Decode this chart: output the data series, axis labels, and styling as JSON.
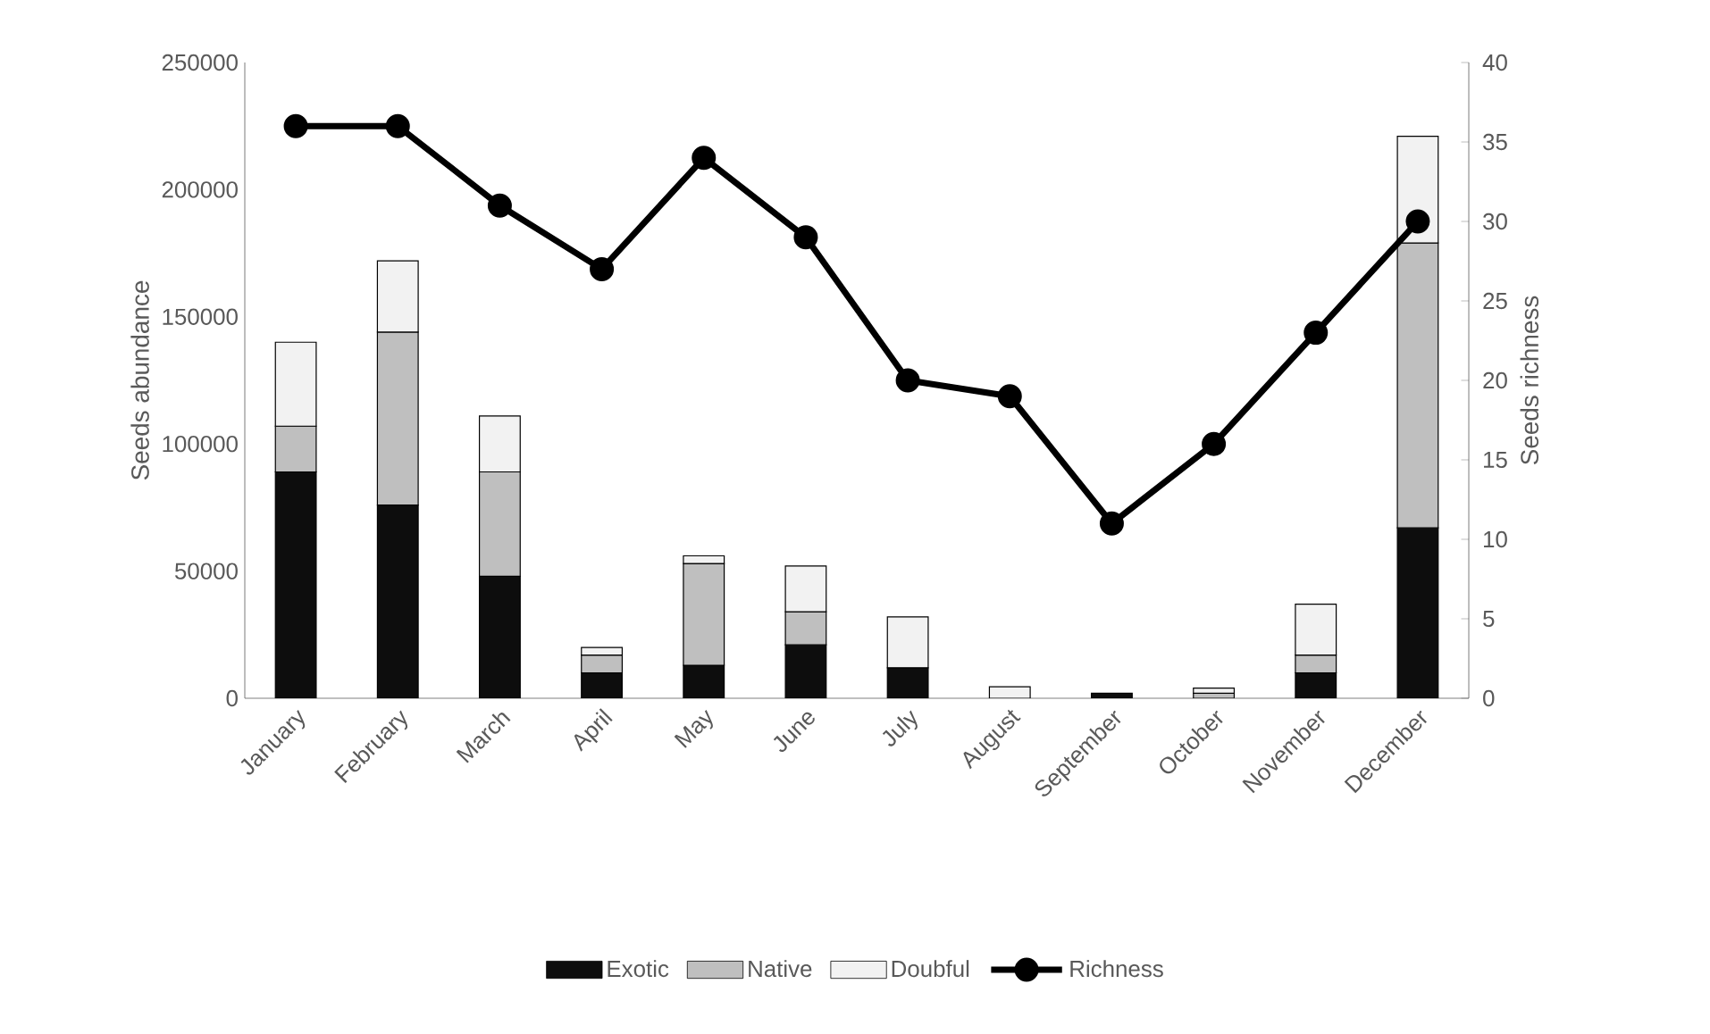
{
  "chart_data": {
    "type": "bar",
    "stacked": true,
    "ylabel": "Seeds abundance",
    "y2label": "Seeds richness",
    "categories": [
      "January",
      "February",
      "March",
      "April",
      "May",
      "June",
      "July",
      "August",
      "September",
      "October",
      "November",
      "December"
    ],
    "series": [
      {
        "name": "Exotic",
        "color": "#0d0d0d",
        "values": [
          89000,
          76000,
          48000,
          10000,
          13000,
          21000,
          12000,
          null,
          2000,
          null,
          10000,
          67000
        ]
      },
      {
        "name": "Native",
        "color": "#bfbfbf",
        "values": [
          18000,
          68000,
          41000,
          7000,
          40000,
          13000,
          0,
          0,
          0,
          2000,
          7000,
          112000
        ]
      },
      {
        "name": "Doubful",
        "color": "#f2f2f2",
        "values": [
          33000,
          28000,
          22000,
          3000,
          3000,
          18000,
          20000,
          4500,
          0,
          2000,
          20000,
          42000
        ]
      },
      {
        "name": "Richness",
        "type": "line",
        "axis": "y2",
        "marker": "circle",
        "color": "#000000",
        "values": [
          36,
          36,
          31,
          27,
          34,
          29,
          20,
          19,
          11,
          16,
          23,
          30
        ]
      }
    ],
    "ylim": [
      0,
      250000
    ],
    "yticks": [
      0,
      50000,
      100000,
      150000,
      200000,
      250000
    ],
    "y2lim": [
      0,
      40
    ],
    "y2ticks": [
      0,
      5,
      10,
      15,
      20,
      25,
      30,
      35,
      40
    ],
    "legend": "bottom"
  }
}
